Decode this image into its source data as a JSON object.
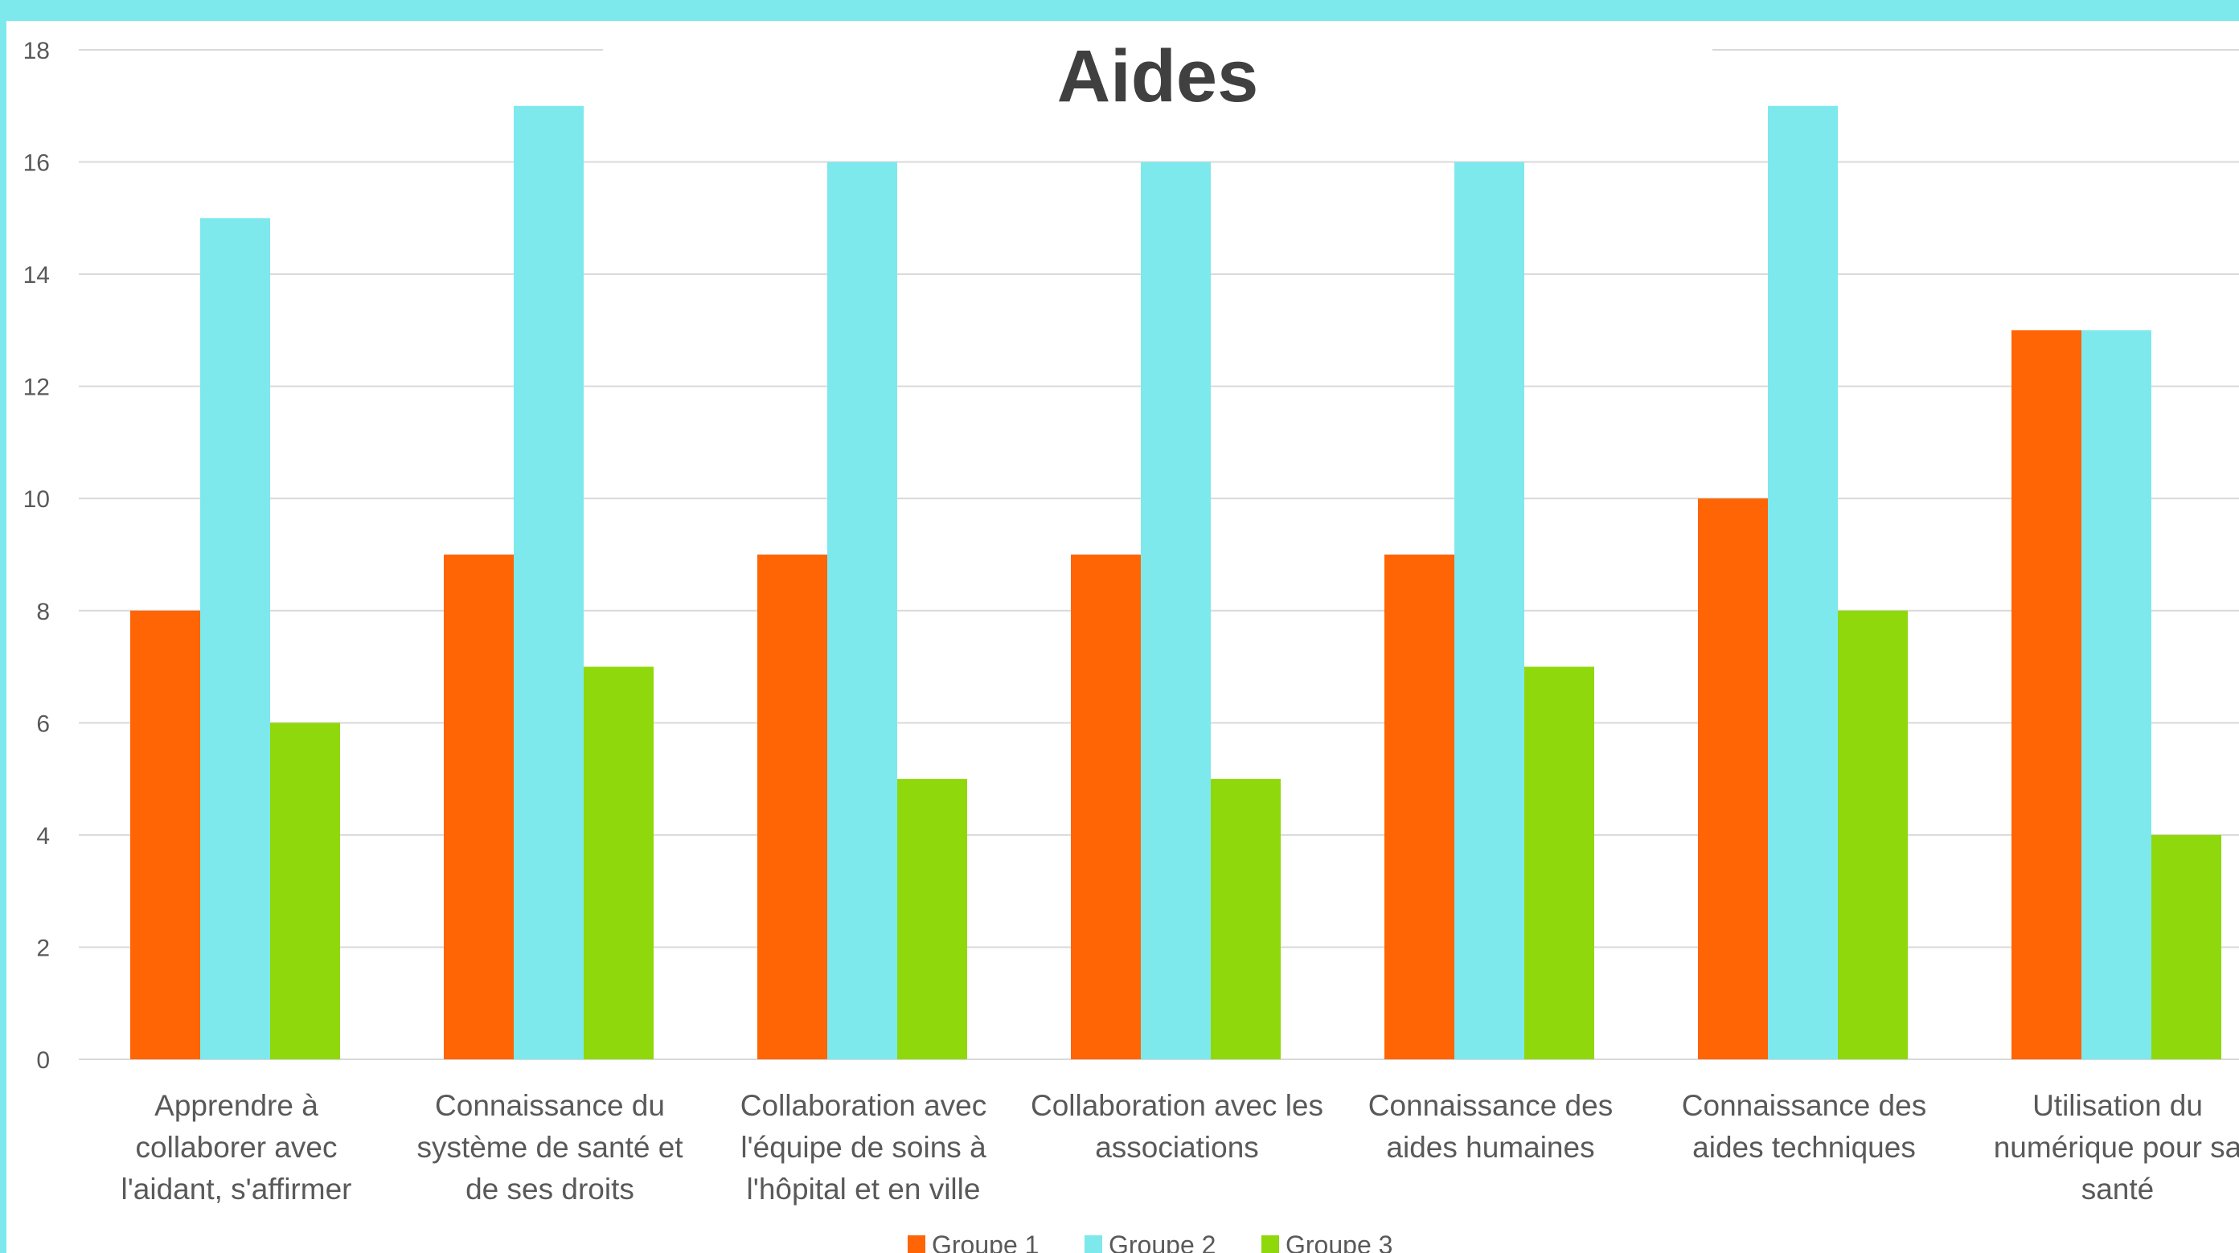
{
  "chart_data": {
    "type": "bar",
    "title": "Aides",
    "xlabel": "",
    "ylabel": "",
    "ylim": [
      0,
      18
    ],
    "yticks": [
      0,
      2,
      4,
      6,
      8,
      10,
      12,
      14,
      16,
      18
    ],
    "grid": true,
    "legend_position": "bottom",
    "categories": [
      [
        "Apprendre à",
        "collaborer avec",
        "l'aidant, s'affirmer"
      ],
      [
        "Connaissance du",
        "système de santé et",
        "de ses droits"
      ],
      [
        "Collaboration avec",
        "l'équipe de soins à",
        "l'hôpital et en ville"
      ],
      [
        "Collaboration avec les",
        "associations"
      ],
      [
        "Connaissance des",
        "aides humaines"
      ],
      [
        "Connaissance des",
        "aides techniques"
      ],
      [
        "Utilisation du",
        "numérique pour sa",
        "santé"
      ]
    ],
    "series": [
      {
        "name": "Groupe 1",
        "color": "#ff6405",
        "values": [
          8,
          9,
          9,
          9,
          9,
          10,
          13
        ]
      },
      {
        "name": "Groupe 2",
        "color": "#7de9ec",
        "values": [
          15,
          17,
          16,
          16,
          16,
          17,
          13
        ]
      },
      {
        "name": "Groupe 3",
        "color": "#8fd80b",
        "values": [
          6,
          7,
          5,
          5,
          7,
          8,
          4
        ]
      }
    ]
  },
  "colors": {
    "frame": "#7de9ec",
    "gridline": "#d9d9d9",
    "text": "#595959",
    "title": "#404040"
  }
}
